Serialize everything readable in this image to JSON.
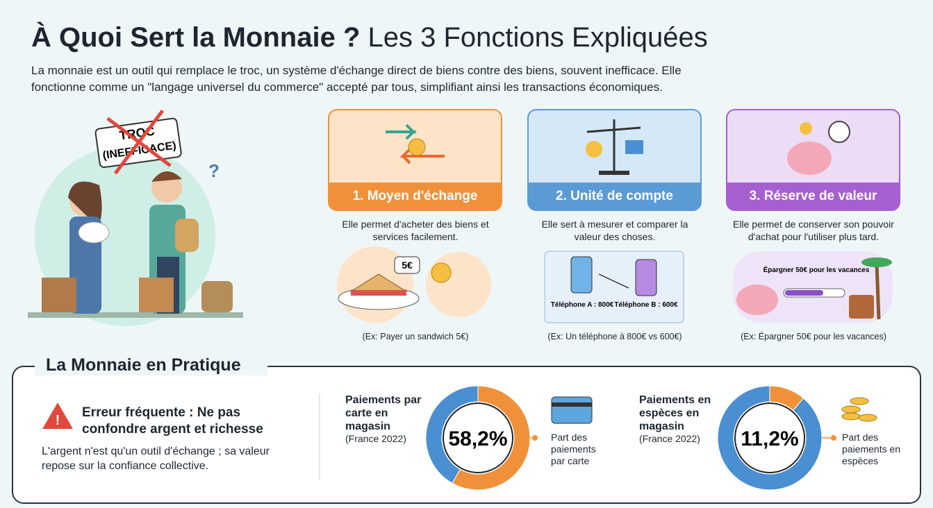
{
  "header": {
    "title_bold": "À Quoi Sert la Monnaie ?",
    "title_rest": "Les 3 Fonctions Expliquées",
    "intro": "La monnaie est un outil qui remplace le troc, un système d'échange direct de biens contre des biens, souvent inefficace. Elle fonctionne comme un \"langage universel du commerce\" accepté par tous, simplifiant ainsi les transactions économiques."
  },
  "barter": {
    "sign": [
      "TROC",
      "(INEFFICACE)"
    ]
  },
  "functions": [
    {
      "title": "1. Moyen d'échange",
      "description": "Elle permet d'acheter des biens et services facilement.",
      "example": "(Ex: Payer un sandwich 5€)",
      "labels": [
        "5€"
      ]
    },
    {
      "title": "2. Unité de compte",
      "description": "Elle sert à mesurer et comparer la valeur des choses.",
      "example": "(Ex: Un téléphone à 800€ vs 600€)",
      "labels": [
        "Téléphone A : 800€",
        "Téléphone B : 600€"
      ]
    },
    {
      "title": "3. Réserve de valeur",
      "description": "Elle permet de conserver son pouvoir d'achat pour l'utiliser plus tard.",
      "example": "(Ex: Épargner 50€ pour les vacances)",
      "labels": [
        "Épargner 50€ pour les vacances"
      ]
    }
  ],
  "practice": {
    "title": "La Monnaie en Pratique",
    "warning_title": "Erreur fréquente : Ne pas confondre argent et richesse",
    "warning_text": "L'argent n'est qu'un outil d'échange ; sa valeur repose sur la confiance collective."
  },
  "chart_data": [
    {
      "type": "pie",
      "donut": true,
      "title": "Paiements par carte en magasin",
      "subtitle": "(France 2022)",
      "categories": [
        "Part des paiements par carte",
        null
      ],
      "values": [
        58.2,
        41.8
      ],
      "value_labels": [
        "58,2%",
        null
      ],
      "colors": [
        "#f0913a",
        "#4a8fd1"
      ]
    },
    {
      "type": "pie",
      "donut": true,
      "title": "Paiements en espèces en magasin",
      "subtitle": "(France 2022)",
      "categories": [
        "Part des paiements en espèces",
        null
      ],
      "values": [
        11.2,
        88.8
      ],
      "value_labels": [
        "11,2%",
        null
      ],
      "colors": [
        "#f0913a",
        "#4a8fd1"
      ]
    }
  ]
}
